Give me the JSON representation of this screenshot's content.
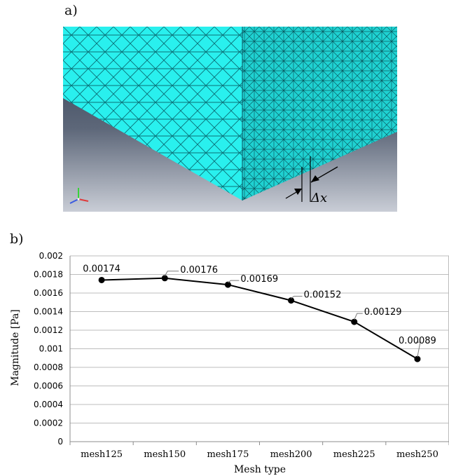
{
  "panels": {
    "a": "a)",
    "b": "b)"
  },
  "mesh_figure": {
    "dimension_label": "Δx"
  },
  "colors": {
    "mesh_fill": "#29f0ee",
    "mesh_side": "#1fd6d6",
    "mesh_line": "#0a5d64",
    "background_top": "#2c3a4f",
    "background_bottom": "#c9cdd6",
    "series": "#000000"
  },
  "chart_data": {
    "type": "line",
    "categories": [
      "mesh125",
      "mesh150",
      "mesh175",
      "mesh200",
      "mesh225",
      "mesh250"
    ],
    "values": [
      0.00174,
      0.00176,
      0.00169,
      0.00152,
      0.00129,
      0.00089
    ],
    "data_labels": [
      "0.00174",
      "0.00176",
      "0.00169",
      "0.00152",
      "0.00129",
      "0.00089"
    ],
    "title": "",
    "xlabel": "Mesh type",
    "ylabel": "Magnitude [Pa]",
    "ylim": [
      0,
      0.002
    ],
    "yticks": [
      "0",
      "0.0002",
      "0.0004",
      "0.0006",
      "0.0008",
      "0.001",
      "0.0012",
      "0.0014",
      "0.0016",
      "0.0018",
      "0.002"
    ],
    "grid": true,
    "legend": "none"
  }
}
